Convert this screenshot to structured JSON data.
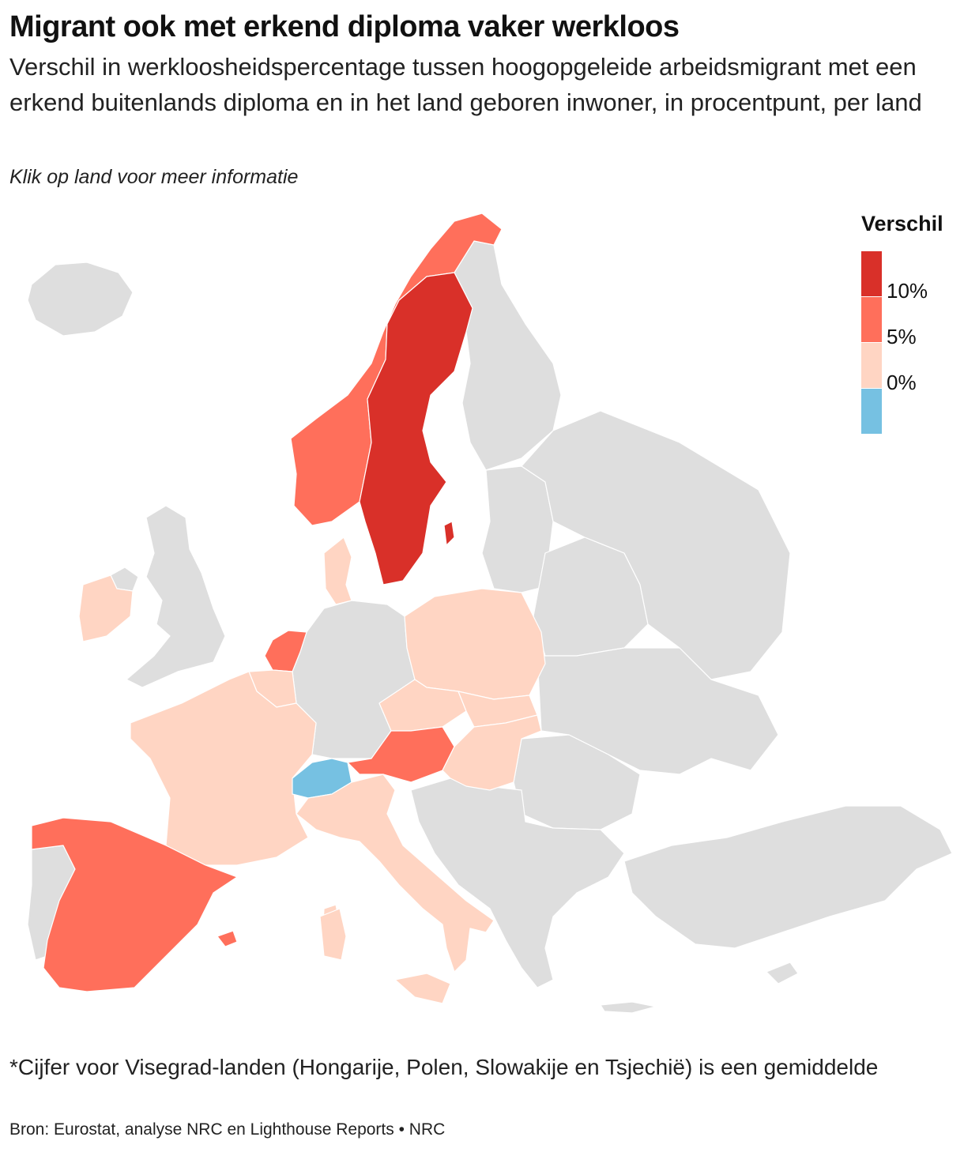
{
  "header": {
    "title": "Migrant ook met erkend diploma vaker werkloos",
    "subtitle": "Verschil in werkloosheidspercentage tussen hoogopgeleide arbeidsmigrant met een erkend buitenlands diploma en in het land geboren inwoner, in procentpunt, per land",
    "instruction": "Klik op land voor meer informatie"
  },
  "legend": {
    "title": "Verschil",
    "bins": [
      {
        "color": "#d93029"
      },
      {
        "color": "#ff6f5b"
      },
      {
        "color": "#ffd5c3"
      },
      {
        "color": "#76c1e2"
      }
    ],
    "labels": [
      "10%",
      "5%",
      "0%"
    ]
  },
  "colors": {
    "nodata": "#dedede",
    "border": "#ffffff"
  },
  "footer": {
    "footnote": "*Cijfer voor Visegrad-landen (Hongarije, Polen, Slowakije en Tsjechië) is een gemiddelde",
    "source": "Bron: Eurostat, analyse NRC en Lighthouse Reports  •  NRC"
  }
}
